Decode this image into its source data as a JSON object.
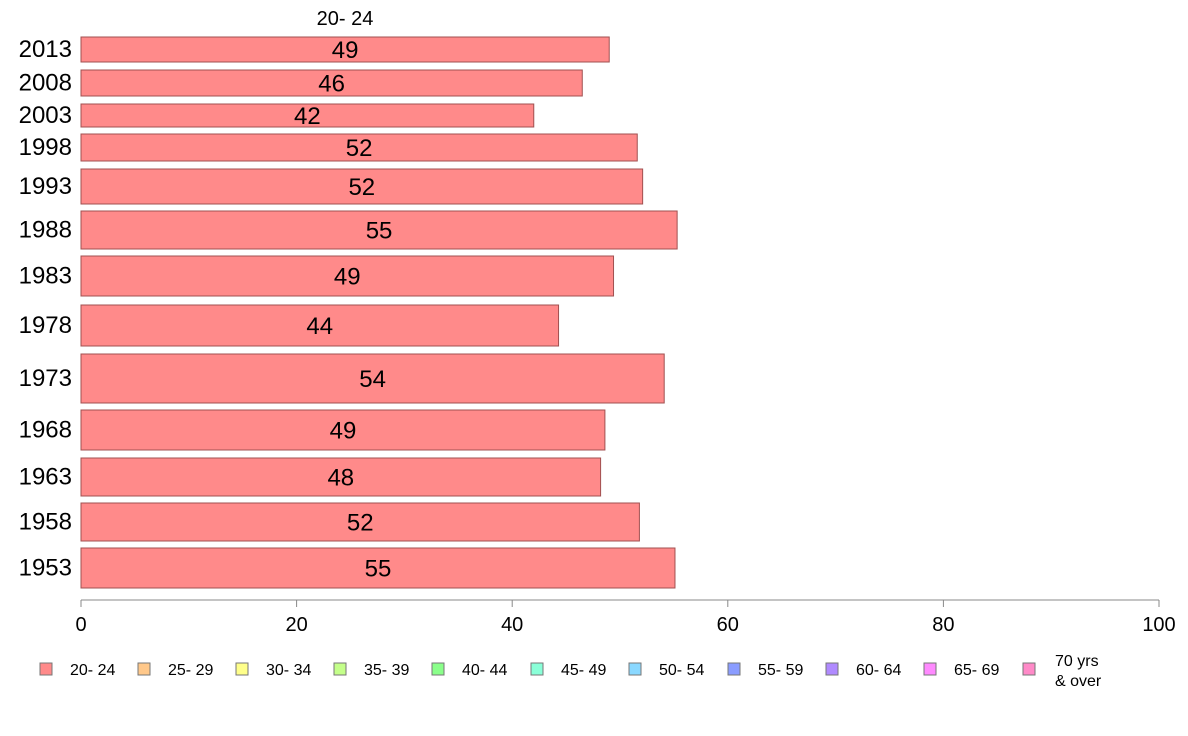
{
  "chart_data": {
    "type": "bar",
    "orientation": "horizontal",
    "series_title": "20- 24",
    "categories": [
      "2013",
      "2008",
      "2003",
      "1998",
      "1993",
      "1988",
      "1983",
      "1978",
      "1973",
      "1968",
      "1963",
      "1958",
      "1953"
    ],
    "values": [
      49,
      46.5,
      42,
      51.6,
      52.1,
      55.3,
      49.4,
      44.3,
      54.1,
      48.6,
      48.2,
      51.8,
      55.1
    ],
    "value_labels": [
      "49",
      "46",
      "42",
      "52",
      "52",
      "55",
      "49",
      "44",
      "54",
      "49",
      "48",
      "52",
      "55"
    ],
    "xlim": [
      0,
      100
    ],
    "xticks": [
      0,
      20,
      40,
      60,
      80,
      100
    ],
    "xtick_labels": [
      "0",
      "20",
      "40",
      "60",
      "80",
      "100"
    ],
    "grid": false,
    "legend_position": "bottom",
    "legend": [
      {
        "label": "20- 24",
        "color": "#ff8a8a"
      },
      {
        "label": "25- 29",
        "color": "#ffc88a"
      },
      {
        "label": "30- 34",
        "color": "#ffff8a"
      },
      {
        "label": "35- 39",
        "color": "#c4ff8a"
      },
      {
        "label": "40- 44",
        "color": "#8aff8a"
      },
      {
        "label": "45- 49",
        "color": "#8affd8"
      },
      {
        "label": "50- 54",
        "color": "#8ad8ff"
      },
      {
        "label": "55- 59",
        "color": "#8a9cff"
      },
      {
        "label": "60- 64",
        "color": "#b08aff"
      },
      {
        "label": "65- 69",
        "color": "#ff8aff"
      },
      {
        "label": "70 yrs\n& over",
        "color": "#ff8ac8"
      }
    ],
    "bar_color": "#ff8a8a",
    "bar_stroke": "#a05050"
  }
}
